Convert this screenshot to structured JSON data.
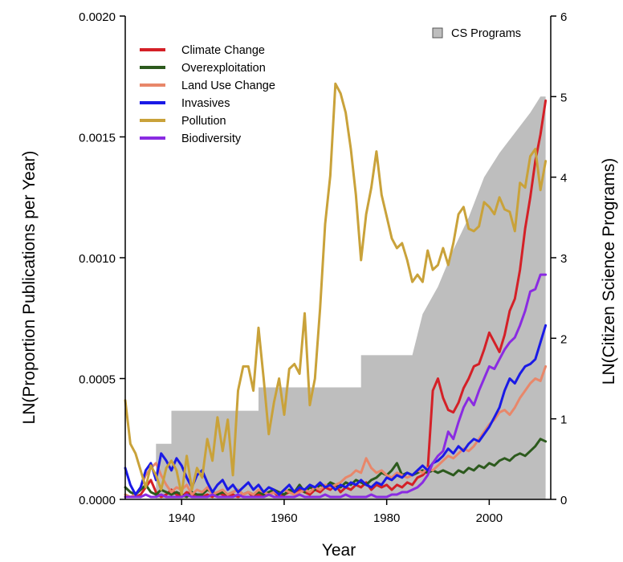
{
  "chart_data": {
    "type": "line",
    "xlabel": "Year",
    "ylabel_left": "LN(Proportion Publications per Year)",
    "ylabel_right": "LN(Citizen Science Programs)",
    "xlim": [
      1929,
      2012
    ],
    "ylim_left": [
      0,
      0.002
    ],
    "ylim_right": [
      0,
      6
    ],
    "grid": false,
    "x_ticks": [
      {
        "value": 1940,
        "label": "1940"
      },
      {
        "value": 1960,
        "label": "1960"
      },
      {
        "value": 1980,
        "label": "1980"
      },
      {
        "value": 2000,
        "label": "2000"
      }
    ],
    "y_ticks_left": [
      {
        "value": 0,
        "label": "0.0000"
      },
      {
        "value": 0.0005,
        "label": "0.0005"
      },
      {
        "value": 0.001,
        "label": "0.0010"
      },
      {
        "value": 0.0015,
        "label": "0.0015"
      },
      {
        "value": 0.002,
        "label": "0.0020"
      }
    ],
    "y_ticks_right": [
      {
        "value": 0,
        "label": "0"
      },
      {
        "value": 1,
        "label": "1"
      },
      {
        "value": 2,
        "label": "2"
      },
      {
        "value": 3,
        "label": "3"
      },
      {
        "value": 4,
        "label": "4"
      },
      {
        "value": 5,
        "label": "5"
      },
      {
        "value": 6,
        "label": "6"
      }
    ],
    "area": {
      "name": "CS Programs",
      "axis": "right",
      "color": "#bebebe",
      "points": [
        [
          1929,
          0
        ],
        [
          1935,
          0
        ],
        [
          1935,
          0.69
        ],
        [
          1938,
          0.69
        ],
        [
          1938,
          1.1
        ],
        [
          1955,
          1.1
        ],
        [
          1955,
          1.39
        ],
        [
          1975,
          1.39
        ],
        [
          1975,
          1.79
        ],
        [
          1985,
          1.79
        ],
        [
          1987,
          2.3
        ],
        [
          1990,
          2.64
        ],
        [
          1993,
          3.1
        ],
        [
          1996,
          3.5
        ],
        [
          1999,
          4.0
        ],
        [
          2002,
          4.3
        ],
        [
          2005,
          4.55
        ],
        [
          2008,
          4.8
        ],
        [
          2010,
          5.0
        ],
        [
          2011,
          5.0
        ]
      ]
    },
    "legend_position": "top-left",
    "area_legend_position": "top-right",
    "series": [
      {
        "name": "Climate Change",
        "color": "#d42027",
        "x_start": 1929,
        "values": [
          1e-05,
          1e-05,
          1e-05,
          2e-05,
          5e-05,
          8e-05,
          3e-05,
          1e-05,
          2e-05,
          4e-05,
          2e-05,
          1e-05,
          3e-05,
          2e-05,
          1e-05,
          1e-05,
          2e-05,
          1e-05,
          3e-05,
          2e-05,
          1e-05,
          2e-05,
          1e-05,
          2e-05,
          3e-05,
          1e-05,
          2e-05,
          1e-05,
          2e-05,
          3e-05,
          1e-05,
          2e-05,
          3e-05,
          2e-05,
          4e-05,
          3e-05,
          2e-05,
          4e-05,
          3e-05,
          5e-05,
          4e-05,
          6e-05,
          3e-05,
          5e-05,
          4e-05,
          6e-05,
          5e-05,
          7e-05,
          4e-05,
          6e-05,
          5e-05,
          6e-05,
          4e-05,
          6e-05,
          5e-05,
          7e-05,
          6e-05,
          9e-05,
          0.0001,
          0.00012,
          0.00045,
          0.0005,
          0.00042,
          0.00037,
          0.00036,
          0.0004,
          0.00046,
          0.0005,
          0.00055,
          0.00056,
          0.00062,
          0.00069,
          0.00065,
          0.00061,
          0.00068,
          0.00078,
          0.00083,
          0.00095,
          0.00112,
          0.00125,
          0.0014,
          0.00151,
          0.00165
        ]
      },
      {
        "name": "Overexploitation",
        "color": "#2c5a1d",
        "x_start": 1929,
        "values": [
          5e-05,
          3e-05,
          2e-05,
          4e-05,
          6e-05,
          3e-05,
          2e-05,
          4e-05,
          3e-05,
          2e-05,
          3e-05,
          2e-05,
          1e-05,
          3e-05,
          2e-05,
          2e-05,
          4e-05,
          3e-05,
          2e-05,
          3e-05,
          2e-05,
          3e-05,
          4e-05,
          2e-05,
          3e-05,
          2e-05,
          3e-05,
          2e-05,
          3e-05,
          4e-05,
          3e-05,
          2e-05,
          4e-05,
          3e-05,
          6e-05,
          3e-05,
          5e-05,
          4e-05,
          6e-05,
          5e-05,
          7e-05,
          6e-05,
          5e-05,
          7e-05,
          6e-05,
          8e-05,
          7e-05,
          6e-05,
          8e-05,
          9e-05,
          0.00011,
          0.0001,
          0.00012,
          0.00015,
          0.0001,
          0.00011,
          0.0001,
          0.00011,
          0.00012,
          0.00011,
          0.00012,
          0.00011,
          0.00012,
          0.00011,
          0.0001,
          0.00012,
          0.00011,
          0.00013,
          0.00012,
          0.00014,
          0.00013,
          0.00015,
          0.00014,
          0.00016,
          0.00017,
          0.00016,
          0.00018,
          0.00019,
          0.00018,
          0.0002,
          0.00022,
          0.00025,
          0.00024
        ]
      },
      {
        "name": "Land Use Change",
        "color": "#e8876a",
        "x_start": 1929,
        "values": [
          2e-05,
          1e-05,
          2e-05,
          5e-05,
          0.0001,
          0.00013,
          0.00015,
          0.0001,
          6e-05,
          3e-05,
          5e-05,
          4e-05,
          6e-05,
          2e-05,
          4e-05,
          3e-05,
          5e-05,
          2e-05,
          3e-05,
          4e-05,
          2e-05,
          3e-05,
          4e-05,
          2e-05,
          3e-05,
          2e-05,
          4e-05,
          3e-05,
          2e-05,
          3e-05,
          2e-05,
          4e-05,
          3e-05,
          2e-05,
          3e-05,
          4e-05,
          3e-05,
          5e-05,
          4e-05,
          6e-05,
          5e-05,
          6e-05,
          7e-05,
          9e-05,
          0.0001,
          0.00012,
          0.00011,
          0.00017,
          0.00013,
          0.00011,
          0.00012,
          0.0001,
          9e-05,
          0.00011,
          0.0001,
          9e-05,
          0.0001,
          0.00012,
          0.00011,
          0.00013,
          0.00012,
          0.00014,
          0.00016,
          0.00018,
          0.00017,
          0.00019,
          0.00021,
          0.0002,
          0.00022,
          0.00025,
          0.00028,
          0.00031,
          0.00033,
          0.00036,
          0.00037,
          0.00035,
          0.00038,
          0.00042,
          0.00045,
          0.00048,
          0.0005,
          0.00049,
          0.00055
        ]
      },
      {
        "name": "Invasives",
        "color": "#1a1ae6",
        "x_start": 1929,
        "values": [
          0.00013,
          6e-05,
          2e-05,
          5e-05,
          0.00012,
          0.00015,
          8e-05,
          0.00019,
          0.00016,
          0.00012,
          0.00017,
          0.00014,
          9e-05,
          5e-05,
          0.0001,
          0.00012,
          7e-05,
          3e-05,
          6e-05,
          8e-05,
          4e-05,
          6e-05,
          3e-05,
          5e-05,
          7e-05,
          4e-05,
          6e-05,
          3e-05,
          5e-05,
          4e-05,
          2e-05,
          4e-05,
          6e-05,
          3e-05,
          5e-05,
          4e-05,
          6e-05,
          5e-05,
          7e-05,
          5e-05,
          6e-05,
          4e-05,
          6e-05,
          5e-05,
          7e-05,
          6e-05,
          8e-05,
          6e-05,
          5e-05,
          7e-05,
          6e-05,
          9e-05,
          8e-05,
          0.0001,
          9e-05,
          0.00011,
          0.0001,
          0.00012,
          0.00014,
          0.00012,
          0.00015,
          0.00016,
          0.00018,
          0.00021,
          0.00019,
          0.00022,
          0.0002,
          0.00023,
          0.00025,
          0.00024,
          0.00027,
          0.0003,
          0.00034,
          0.00038,
          0.00045,
          0.0005,
          0.00048,
          0.00052,
          0.00055,
          0.00056,
          0.00058,
          0.00065,
          0.00072
        ]
      },
      {
        "name": "Pollution",
        "color": "#c9a23a",
        "x_start": 1929,
        "values": [
          0.00041,
          0.00023,
          0.00019,
          0.00012,
          5e-05,
          0.00014,
          0.0001,
          4e-05,
          0.00013,
          0.00016,
          0.00012,
          2e-05,
          0.00018,
          4e-05,
          0.00013,
          9e-05,
          0.00025,
          0.00016,
          0.00034,
          0.0002,
          0.00033,
          0.0001,
          0.00045,
          0.00055,
          0.00055,
          0.00045,
          0.00071,
          0.0005,
          0.00027,
          0.0004,
          0.0005,
          0.00035,
          0.00054,
          0.00056,
          0.00052,
          0.00077,
          0.00039,
          0.0005,
          0.00079,
          0.00114,
          0.00134,
          0.00172,
          0.00168,
          0.0016,
          0.00145,
          0.00126,
          0.00099,
          0.00118,
          0.00129,
          0.00144,
          0.00126,
          0.00117,
          0.00108,
          0.00104,
          0.00106,
          0.00099,
          0.0009,
          0.00093,
          0.0009,
          0.00103,
          0.00095,
          0.00097,
          0.00104,
          0.00097,
          0.00106,
          0.00118,
          0.00121,
          0.00112,
          0.00111,
          0.00113,
          0.00123,
          0.00121,
          0.00118,
          0.00125,
          0.0012,
          0.00119,
          0.00111,
          0.00131,
          0.00129,
          0.00142,
          0.00145,
          0.00128,
          0.0014
        ]
      },
      {
        "name": "Biodiversity",
        "color": "#8a2be2",
        "x_start": 1929,
        "values": [
          1e-05,
          1e-05,
          1e-05,
          1e-05,
          2e-05,
          1e-05,
          1e-05,
          2e-05,
          1e-05,
          1e-05,
          1e-05,
          1e-05,
          2e-05,
          1e-05,
          1e-05,
          1e-05,
          1e-05,
          2e-05,
          1e-05,
          1e-05,
          1e-05,
          1e-05,
          2e-05,
          1e-05,
          1e-05,
          1e-05,
          1e-05,
          1e-05,
          2e-05,
          1e-05,
          1e-05,
          1e-05,
          1e-05,
          1e-05,
          2e-05,
          1e-05,
          1e-05,
          1e-05,
          1e-05,
          2e-05,
          1e-05,
          1e-05,
          1e-05,
          2e-05,
          1e-05,
          1e-05,
          1e-05,
          1e-05,
          2e-05,
          1e-05,
          1e-05,
          1e-05,
          2e-05,
          2e-05,
          3e-05,
          3e-05,
          4e-05,
          5e-05,
          7e-05,
          0.0001,
          0.00015,
          0.00018,
          0.0002,
          0.00028,
          0.00025,
          0.00032,
          0.00038,
          0.00042,
          0.00039,
          0.00045,
          0.0005,
          0.00055,
          0.00054,
          0.00058,
          0.00062,
          0.00065,
          0.00067,
          0.00072,
          0.00078,
          0.00086,
          0.00087,
          0.00093,
          0.00093
        ]
      }
    ]
  }
}
